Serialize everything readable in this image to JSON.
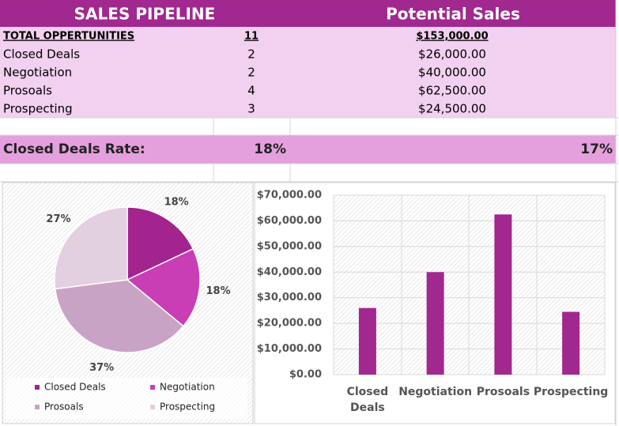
{
  "table": {
    "header": [
      "SALES PIPELINE",
      "Potential Sales"
    ],
    "total": [
      "TOTAL OPPERTUNITIES",
      "11",
      "$153,000.00"
    ],
    "rows": [
      [
        "Closed Deals",
        "2",
        "$26,000.00"
      ],
      [
        "Negotiation",
        "2",
        "$40,000.00"
      ],
      [
        "Prosoals",
        "4",
        "$62,500.00"
      ],
      [
        "Prospecting",
        "3",
        "$24,500.00"
      ]
    ],
    "rate": [
      "Closed Deals Rate:",
      "18%",
      "17%"
    ]
  },
  "chart_data": [
    {
      "type": "pie",
      "categories": [
        "Closed Deals",
        "Negotiation",
        "Prosoals",
        "Prospecting"
      ],
      "values": [
        18,
        18,
        37,
        27
      ],
      "value_labels": [
        "18%",
        "18%",
        "37%",
        "27%"
      ],
      "colors": [
        "#a3238f",
        "#c93db5",
        "#c9a3c5",
        "#e2cfe0"
      ],
      "legend": "bottom"
    },
    {
      "type": "bar",
      "categories": [
        "Closed Deals",
        "Negotiation",
        "Prosoals",
        "Prospecting"
      ],
      "values": [
        26000,
        40000,
        62500,
        24500
      ],
      "color": "#a0288f",
      "ylim": [
        0,
        70000
      ],
      "yticks": [
        {
          "value": 0,
          "label": "$0.00"
        },
        {
          "value": 10000,
          "label": "$10,000.00"
        },
        {
          "value": 20000,
          "label": "$20,000.00"
        },
        {
          "value": 30000,
          "label": "$30,000.00"
        },
        {
          "value": 40000,
          "label": "$40,000.00"
        },
        {
          "value": 50000,
          "label": "$50,000.00"
        },
        {
          "value": 60000,
          "label": "$60,000.00"
        },
        {
          "value": 70000,
          "label": "$70,000.00"
        }
      ],
      "grid": true
    }
  ]
}
